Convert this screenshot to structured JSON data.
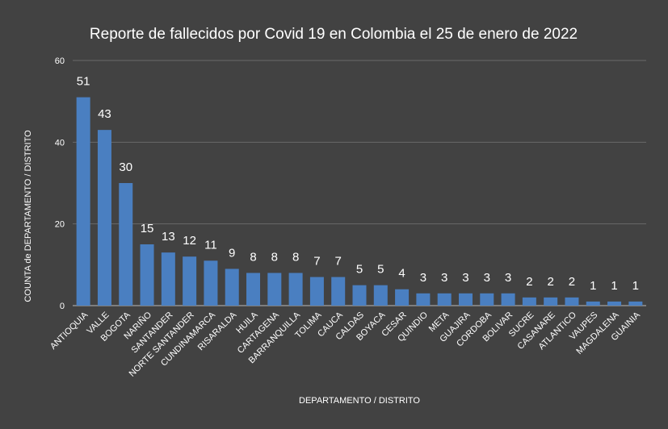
{
  "chart_data": {
    "type": "bar",
    "title": "Reporte de fallecidos por Covid 19 en Colombia el 25 de enero de 2022",
    "xlabel": "DEPARTAMENTO / DISTRITO",
    "ylabel": "COUNTA de DEPARTAMENTO / DISTRITO",
    "ylim": [
      0,
      60
    ],
    "yticks": [
      0,
      20,
      40,
      60
    ],
    "grid": true,
    "bar_color": "#4a7fc1",
    "background": "#424242",
    "categories": [
      "ANTIOQUIA",
      "VALLE",
      "BOGOTA",
      "NARIÑO",
      "SANTANDER",
      "NORTE SANTANDER",
      "CUNDINAMARCA",
      "RISARALDA",
      "HUILA",
      "CARTAGENA",
      "BARRANQUILLA",
      "TOLIMA",
      "CAUCA",
      "CALDAS",
      "BOYACA",
      "CESAR",
      "QUINDIO",
      "META",
      "GUAJIRA",
      "CORDOBA",
      "BOLIVAR",
      "SUCRE",
      "CASANARE",
      "ATLANTICO",
      "VAUPES",
      "MAGDALENA",
      "GUAINIA"
    ],
    "values": [
      51,
      43,
      30,
      15,
      13,
      12,
      11,
      9,
      8,
      8,
      8,
      7,
      7,
      5,
      5,
      4,
      3,
      3,
      3,
      3,
      3,
      2,
      2,
      2,
      1,
      1,
      1
    ]
  }
}
